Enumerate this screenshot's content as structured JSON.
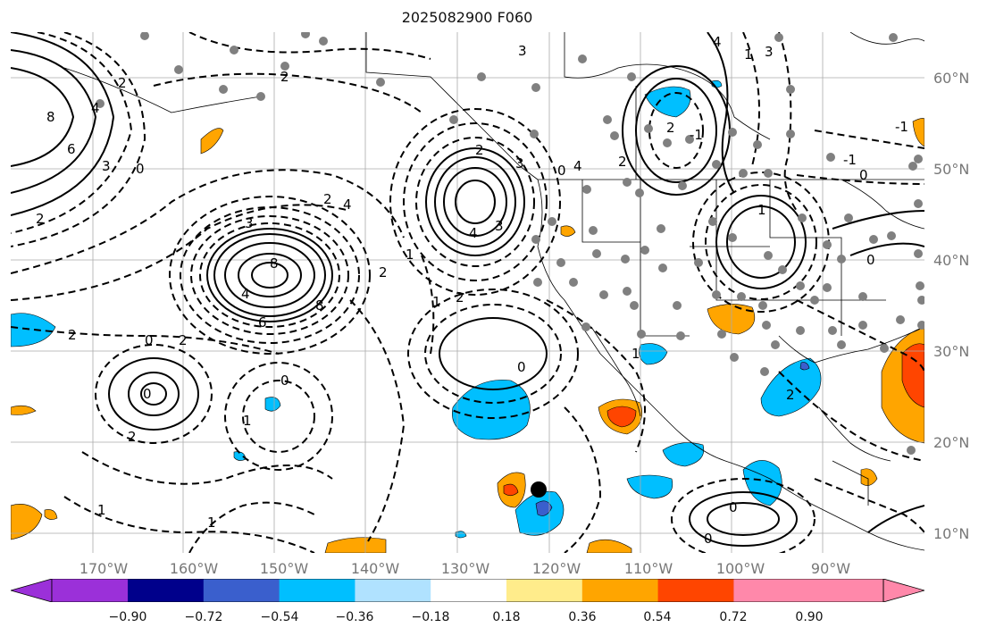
{
  "title": "2025082900 F060",
  "map": {
    "latitude_labels": [
      "60°N",
      "50°N",
      "40°N",
      "30°N",
      "20°N",
      "10°N"
    ],
    "longitude_labels": [
      "170°W",
      "160°W",
      "150°W",
      "140°W",
      "130°W",
      "120°W",
      "110°W",
      "100°W",
      "90°W"
    ],
    "contour_labels": [
      "8",
      "6",
      "3",
      "0",
      "2",
      "4",
      "8",
      "4",
      "6",
      "8",
      "4",
      "2",
      "3",
      "0",
      "2",
      "4",
      "3",
      "2",
      "0",
      "3",
      "4",
      "2",
      "0",
      "2",
      "1",
      "0",
      "2",
      "1",
      "0",
      "1",
      "1",
      "2",
      "0",
      "1",
      "1",
      "0",
      "1",
      "-1",
      "2",
      "0",
      "-1",
      "0",
      "-1",
      "1",
      "3",
      "4",
      "3",
      "2",
      "2",
      "2",
      "2"
    ],
    "storm_marker": "black-circle"
  },
  "colorbar": {
    "ticks": [
      "−0.90",
      "−0.72",
      "−0.54",
      "−0.36",
      "−0.18",
      "0.18",
      "0.36",
      "0.54",
      "0.72",
      "0.90"
    ],
    "colors": [
      "#9b30d9",
      "#00008b",
      "#3a5fcd",
      "#00bfff",
      "#b0e2ff",
      "#ffffff",
      "#ffec8b",
      "#ffa500",
      "#ff4500",
      "#b22222",
      "#ff88aa"
    ]
  }
}
